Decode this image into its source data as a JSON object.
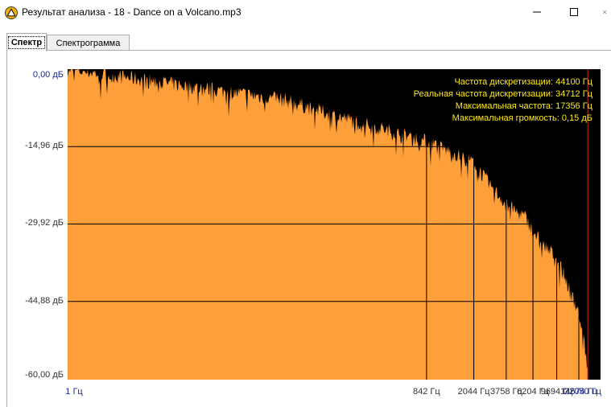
{
  "window": {
    "title": "Результат анализа - 18 - Dance on a Volcano.mp3",
    "app_icon": "foobar-warning-triangle-icon",
    "controls": [
      "minimize-icon",
      "maximize-icon",
      "close-icon"
    ]
  },
  "tabs": [
    {
      "label": "Спектр",
      "active": true
    },
    {
      "label": "Спектрограмма",
      "active": false
    }
  ],
  "info": {
    "sample_rate": "Частота дискретизации: 44100 Гц",
    "real_sample_rate": "Реальная частота дискретизации: 34712 Гц",
    "max_frequency": "Максимальная частота: 17356 Гц",
    "max_loudness": "Максимальная громкость: 0,15 дБ"
  },
  "colors": {
    "background": "#000000",
    "fill": "#ff9f3a",
    "grid": "#000000",
    "marker": "#d02020",
    "info_text": "#ffeb1a",
    "edge_labels": "#1a2aa0"
  },
  "chart_data": {
    "type": "area",
    "title": "",
    "xlabel": "",
    "ylabel": "",
    "x_scale": "log",
    "x_ticks": [
      "1 Гц",
      "842 Гц",
      "2044 Гц",
      "3758 Гц",
      "6204 Гц",
      "9694 Гц",
      "14674 Гц",
      "22050 Гц"
    ],
    "y_ticks": [
      "0,00 дБ",
      "-14,96 дБ",
      "-29,92 дБ",
      "-44,88 дБ",
      "-60,00 дБ"
    ],
    "ylim": [
      -60,
      0
    ],
    "xlim": [
      1,
      22050
    ],
    "grid": true,
    "marker_frequency_hz": 17356,
    "series": [
      {
        "x": [
          1,
          60,
          150,
          300,
          500,
          842,
          1200,
          1600,
          2044,
          2500,
          3000,
          3758,
          4500,
          5300,
          6204,
          7200,
          8300,
          9694,
          11000,
          12500,
          13800,
          14674,
          15600,
          16500,
          17356
        ],
        "values": [
          0,
          -6,
          -9,
          -11,
          -12.5,
          -14,
          -15.5,
          -17,
          -18,
          -21,
          -23.5,
          -26,
          -27.5,
          -28.5,
          -31,
          -33.5,
          -35,
          -36.5,
          -39.5,
          -43,
          -45.5,
          -47,
          -50,
          -54,
          -59
        ]
      }
    ]
  }
}
